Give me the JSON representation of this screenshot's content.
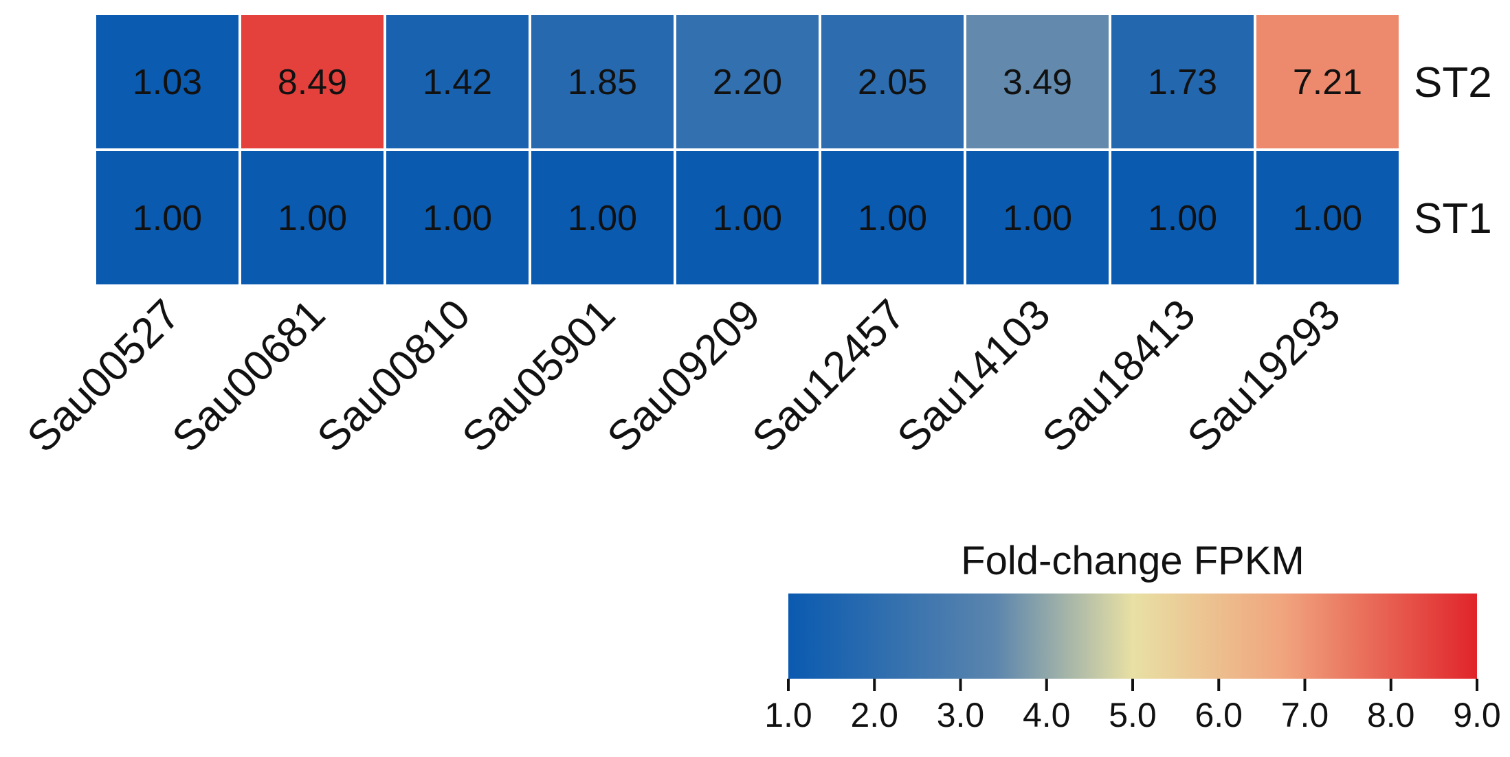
{
  "chart_data": {
    "type": "heatmap",
    "columns": [
      "Sau00527",
      "Sau00681",
      "Sau00810",
      "Sau05901",
      "Sau09209",
      "Sau12457",
      "Sau14103",
      "Sau18413",
      "Sau19293"
    ],
    "rows": [
      {
        "label": "ST2",
        "values": [
          1.03,
          8.49,
          1.42,
          1.85,
          2.2,
          2.05,
          3.49,
          1.73,
          7.21
        ],
        "display": [
          "1.03",
          "8.49",
          "1.42",
          "1.85",
          "2.20",
          "2.05",
          "3.49",
          "1.73",
          "7.21"
        ]
      },
      {
        "label": "ST1",
        "values": [
          1.0,
          1.0,
          1.0,
          1.0,
          1.0,
          1.0,
          1.0,
          1.0,
          1.0
        ],
        "display": [
          "1.00",
          "1.00",
          "1.00",
          "1.00",
          "1.00",
          "1.00",
          "1.00",
          "1.00",
          "1.00"
        ]
      }
    ],
    "colorbar": {
      "title": "Fold-change FPKM",
      "min": 1.0,
      "max": 9.0,
      "ticks": [
        "1.0",
        "2.0",
        "3.0",
        "4.0",
        "5.0",
        "6.0",
        "7.0",
        "8.0",
        "9.0"
      ],
      "colors": [
        "#0a5ab0",
        "#5b85ad",
        "#e8e0a4",
        "#f0a47e",
        "#e0242a"
      ],
      "stops": [
        0,
        0.3,
        0.5,
        0.72,
        1
      ]
    }
  }
}
